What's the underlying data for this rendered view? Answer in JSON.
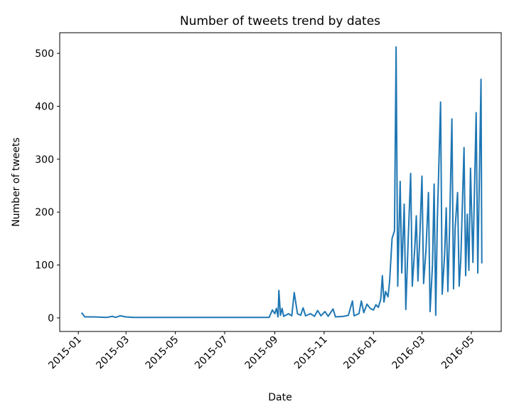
{
  "chart_data": {
    "type": "line",
    "title": "Number of tweets trend by dates",
    "xlabel": "Date",
    "ylabel": "Number of tweets",
    "x": [
      "2015-01-05",
      "2015-01-09",
      "2015-01-20",
      "2015-02-05",
      "2015-02-12",
      "2015-02-16",
      "2015-02-22",
      "2015-03-01",
      "2015-03-10",
      "2015-05-01",
      "2015-07-01",
      "2015-08-25",
      "2015-08-29",
      "2015-09-01",
      "2015-09-03",
      "2015-09-05",
      "2015-09-06",
      "2015-09-08",
      "2015-09-10",
      "2015-09-12",
      "2015-09-18",
      "2015-09-22",
      "2015-09-25",
      "2015-09-29",
      "2015-10-03",
      "2015-10-06",
      "2015-10-09",
      "2015-10-15",
      "2015-10-20",
      "2015-10-24",
      "2015-10-28",
      "2015-11-02",
      "2015-11-06",
      "2015-11-12",
      "2015-11-15",
      "2015-11-25",
      "2015-12-01",
      "2015-12-06",
      "2015-12-08",
      "2015-12-14",
      "2015-12-17",
      "2015-12-20",
      "2015-12-24",
      "2015-12-28",
      "2016-01-01",
      "2016-01-04",
      "2016-01-07",
      "2016-01-10",
      "2016-01-12",
      "2016-01-14",
      "2016-01-16",
      "2016-01-19",
      "2016-01-21",
      "2016-01-24",
      "2016-01-27",
      "2016-01-29",
      "2016-01-31",
      "2016-02-03",
      "2016-02-05",
      "2016-02-08",
      "2016-02-10",
      "2016-02-13",
      "2016-02-16",
      "2016-02-18",
      "2016-02-21",
      "2016-02-23",
      "2016-02-25",
      "2016-02-27",
      "2016-03-01",
      "2016-03-03",
      "2016-03-06",
      "2016-03-09",
      "2016-03-11",
      "2016-03-14",
      "2016-03-16",
      "2016-03-18",
      "2016-03-20",
      "2016-03-24",
      "2016-03-26",
      "2016-03-29",
      "2016-03-31",
      "2016-04-02",
      "2016-04-04",
      "2016-04-07",
      "2016-04-09",
      "2016-04-11",
      "2016-04-14",
      "2016-04-16",
      "2016-04-18",
      "2016-04-22",
      "2016-04-24",
      "2016-04-26",
      "2016-04-28",
      "2016-04-30",
      "2016-05-03",
      "2016-05-07",
      "2016-05-09",
      "2016-05-13",
      "2016-05-14"
    ],
    "series": [
      {
        "color": "#1f77b4",
        "values": [
          10,
          2,
          2,
          1,
          3,
          1,
          4,
          2,
          1,
          1,
          1,
          1,
          15,
          8,
          18,
          2,
          52,
          5,
          18,
          3,
          8,
          4,
          48,
          8,
          5,
          19,
          4,
          8,
          3,
          14,
          4,
          12,
          3,
          17,
          2,
          3,
          5,
          32,
          4,
          8,
          32,
          10,
          26,
          18,
          15,
          25,
          20,
          35,
          80,
          30,
          50,
          40,
          70,
          150,
          165,
          512,
          60,
          258,
          85,
          215,
          16,
          150,
          273,
          60,
          130,
          193,
          70,
          142,
          268,
          65,
          130,
          237,
          12,
          100,
          253,
          5,
          185,
          408,
          45,
          120,
          208,
          50,
          160,
          376,
          55,
          170,
          237,
          60,
          110,
          322,
          80,
          196,
          90,
          283,
          105,
          388,
          85,
          451,
          103
        ]
      }
    ],
    "xlim": [
      "2014-12-09",
      "2016-06-07"
    ],
    "xticks": [
      "2015-01",
      "2015-03",
      "2015-05",
      "2015-07",
      "2015-09",
      "2015-11",
      "2016-01",
      "2016-03",
      "2016-05"
    ],
    "ylim": [
      -25.6,
      539
    ],
    "yticks": [
      0,
      100,
      200,
      300,
      400,
      500
    ]
  }
}
